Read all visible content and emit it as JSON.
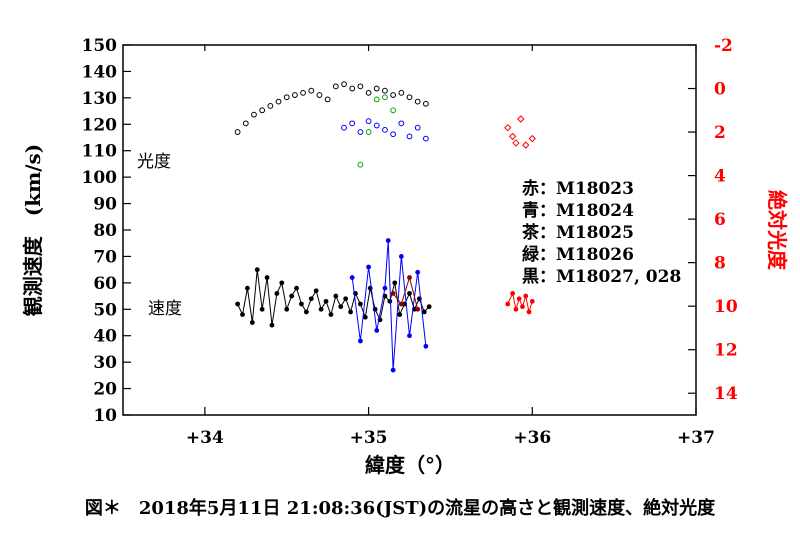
{
  "chart_data": {
    "type": "scatter",
    "title": "",
    "caption": "図＊　2018年5月11日 21:08:36(JST)の流星の高さと観測速度、絶対光度",
    "xlabel": "緯度（°）",
    "ylabel_left": "観測速度　(km/s)",
    "ylabel_right": "絶対光度",
    "xlim": [
      33.5,
      37
    ],
    "ylim_left": [
      10,
      150
    ],
    "ylim_right": [
      -2,
      15
    ],
    "xticks": [
      34,
      35,
      36,
      37
    ],
    "xtick_labels": [
      "+34",
      "+35",
      "+36",
      "+37"
    ],
    "yticks_left": [
      10,
      20,
      30,
      40,
      50,
      60,
      70,
      80,
      90,
      100,
      110,
      120,
      130,
      140,
      150
    ],
    "yticks_right": [
      -2,
      0,
      2,
      4,
      6,
      8,
      10,
      12,
      14
    ],
    "grid": false,
    "annotations": {
      "brightness": "光度",
      "velocity": "速度"
    },
    "legend": [
      "赤：M18023",
      "青：M18024",
      "茶：M18025",
      "緑：M18026",
      "黒：M18027, 028"
    ],
    "series_colors": {
      "red": "#ff0000",
      "blue": "#0000ff",
      "brown": "#8b0000",
      "green": "#00aa00",
      "black": "#000000"
    },
    "series": [
      {
        "color": "black",
        "kind": "velocity",
        "x": [
          34.2,
          34.23,
          34.26,
          34.29,
          34.32,
          34.35,
          34.38,
          34.41,
          34.44,
          34.47,
          34.5,
          34.53,
          34.56,
          34.59,
          34.62,
          34.65,
          34.68,
          34.71,
          34.74,
          34.77,
          34.8,
          34.83,
          34.86,
          34.89,
          34.92,
          34.95,
          34.98,
          35.01,
          35.04,
          35.07,
          35.1,
          35.13,
          35.16,
          35.19,
          35.22,
          35.25,
          35.28,
          35.31,
          35.34,
          35.37
        ],
        "y": [
          52,
          48,
          58,
          45,
          65,
          50,
          62,
          44,
          56,
          60,
          50,
          55,
          58,
          52,
          49,
          54,
          57,
          50,
          53,
          48,
          55,
          51,
          54,
          49,
          56,
          52,
          47,
          58,
          50,
          46,
          55,
          53,
          60,
          48,
          52,
          56,
          50,
          54,
          49,
          51
        ]
      },
      {
        "color": "blue",
        "kind": "velocity",
        "x": [
          34.9,
          34.95,
          35.0,
          35.05,
          35.1,
          35.12,
          35.15,
          35.2,
          35.25,
          35.3,
          35.35
        ],
        "y": [
          62,
          38,
          66,
          42,
          58,
          76,
          27,
          70,
          40,
          64,
          36
        ]
      },
      {
        "color": "brown",
        "kind": "velocity",
        "x": [
          35.15,
          35.2,
          35.25,
          35.3
        ],
        "y": [
          56,
          52,
          62,
          50
        ]
      },
      {
        "color": "red",
        "kind": "velocity",
        "x": [
          35.85,
          35.88,
          35.9,
          35.92,
          35.94,
          35.96,
          35.98,
          36.0
        ],
        "y": [
          52,
          56,
          50,
          54,
          51,
          55,
          49,
          53
        ]
      },
      {
        "color": "black",
        "kind": "magnitude",
        "x": [
          34.2,
          34.25,
          34.3,
          34.35,
          34.4,
          34.45,
          34.5,
          34.55,
          34.6,
          34.65,
          34.7,
          34.75,
          34.8,
          34.85,
          34.9,
          34.95,
          35.0,
          35.05,
          35.1,
          35.15,
          35.2,
          35.25,
          35.3,
          35.35
        ],
        "y": [
          2,
          1.6,
          1.2,
          1.0,
          0.8,
          0.6,
          0.4,
          0.3,
          0.2,
          0.1,
          0.3,
          0.5,
          -0.1,
          -0.2,
          0.0,
          -0.1,
          0.2,
          0.0,
          0.1,
          0.3,
          0.2,
          0.4,
          0.6,
          0.7
        ]
      },
      {
        "color": "blue",
        "kind": "magnitude",
        "x": [
          34.85,
          34.9,
          34.95,
          35.0,
          35.05,
          35.1,
          35.15,
          35.2,
          35.25,
          35.3,
          35.35
        ],
        "y": [
          1.8,
          1.6,
          2.0,
          1.5,
          1.7,
          1.9,
          2.1,
          1.6,
          2.2,
          1.8,
          2.3
        ]
      },
      {
        "color": "green",
        "kind": "magnitude",
        "x": [
          34.95,
          35.0,
          35.05,
          35.1,
          35.15
        ],
        "y": [
          3.5,
          2.0,
          0.5,
          0.4,
          1.0
        ]
      },
      {
        "color": "red",
        "kind": "magnitude",
        "x": [
          35.85,
          35.88,
          35.9,
          35.93,
          35.96,
          36.0
        ],
        "y": [
          1.8,
          2.2,
          2.5,
          1.4,
          2.6,
          2.3
        ]
      }
    ]
  }
}
